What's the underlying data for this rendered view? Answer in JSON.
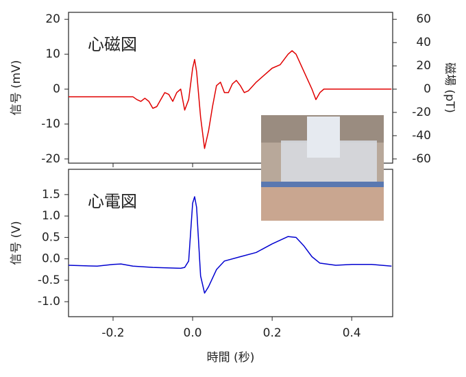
{
  "chart_data": [
    {
      "type": "line",
      "ylabel": "信号 (mV)",
      "y2label": "磁場 (pT)",
      "xlim": [
        -0.312,
        0.503
      ],
      "ylim": [
        -21.2,
        22
      ],
      "yticks": [
        -20,
        -10,
        0,
        10,
        20
      ],
      "y2lim": [
        -63.6,
        66
      ],
      "y2ticks": [
        -60,
        -40,
        -20,
        0,
        20,
        40,
        60
      ],
      "x": [
        -0.312,
        -0.15,
        -0.14,
        -0.13,
        -0.12,
        -0.11,
        -0.1,
        -0.09,
        -0.08,
        -0.07,
        -0.06,
        -0.05,
        -0.04,
        -0.03,
        -0.02,
        -0.01,
        0,
        0.005,
        0.01,
        0.02,
        0.03,
        0.04,
        0.05,
        0.06,
        0.07,
        0.08,
        0.09,
        0.1,
        0.11,
        0.12,
        0.13,
        0.14,
        0.16,
        0.18,
        0.2,
        0.22,
        0.24,
        0.25,
        0.26,
        0.28,
        0.3,
        0.31,
        0.32,
        0.33,
        0.36,
        0.5
      ],
      "series": [
        {
          "name": "心磁図",
          "color": "#e00000",
          "values": [
            -2.2,
            -2.2,
            -3,
            -3.5,
            -2.6,
            -3.5,
            -5.5,
            -5,
            -3,
            -1,
            -1.5,
            -3.5,
            -1,
            0,
            -6,
            -3,
            6,
            8.5,
            5,
            -8,
            -17,
            -12,
            -5,
            1,
            2,
            -1,
            -1,
            1.5,
            2.5,
            1,
            -1,
            -0.5,
            2,
            4,
            6,
            7,
            10,
            11,
            10,
            5,
            0,
            -3,
            -1,
            0,
            0,
            0
          ]
        }
      ]
    },
    {
      "type": "line",
      "ylabel": "信号 (V)",
      "xlabel": "時間 (秒)",
      "xlim": [
        -0.312,
        0.503
      ],
      "xticks": [
        -0.2,
        {
          "value": 0,
          "label": "0.0"
        },
        0.2,
        0.4
      ],
      "ylim": [
        -1.35,
        2.09
      ],
      "yticks": [
        {
          "value": -1,
          "label": "-1.0"
        },
        -0.5,
        {
          "value": 0,
          "label": "0.0"
        },
        0.5,
        {
          "value": 1,
          "label": "1.0"
        },
        1.5
      ],
      "x": [
        -0.312,
        -0.24,
        -0.2,
        -0.18,
        -0.15,
        -0.1,
        -0.03,
        -0.02,
        -0.01,
        0,
        0.005,
        0.01,
        0.02,
        0.03,
        0.04,
        0.06,
        0.08,
        0.12,
        0.16,
        0.2,
        0.24,
        0.26,
        0.28,
        0.3,
        0.32,
        0.36,
        0.4,
        0.45,
        0.5
      ],
      "series": [
        {
          "name": "心電図",
          "color": "#0000d0",
          "values": [
            -0.15,
            -0.17,
            -0.13,
            -0.12,
            -0.17,
            -0.2,
            -0.22,
            -0.2,
            -0.05,
            1.3,
            1.45,
            1.2,
            -0.4,
            -0.8,
            -0.65,
            -0.25,
            -0.05,
            0.05,
            0.15,
            0.35,
            0.52,
            0.5,
            0.3,
            0.05,
            -0.1,
            -0.15,
            -0.13,
            -0.13,
            -0.17
          ]
        }
      ]
    }
  ]
}
